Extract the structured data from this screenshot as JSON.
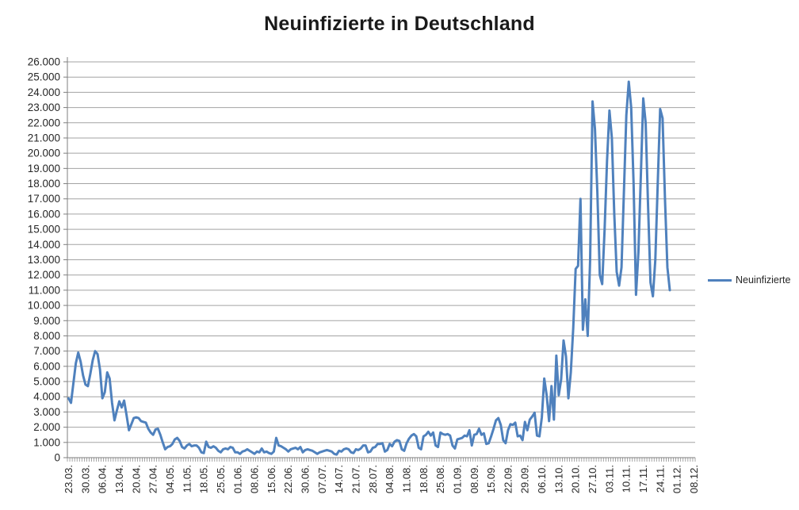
{
  "chart_data": {
    "type": "line",
    "title": "Neuinfizierte in Deutschland",
    "series_name": "Neuinfizierte",
    "legend_position": "right",
    "line_color": "#4F81BD",
    "gridline_color": "#A3A3A3",
    "axis_color": "#7F7F7F",
    "text_color": "#262626",
    "grid": "horizontal",
    "ylim": [
      0,
      26000
    ],
    "ytick_step": 1000,
    "ytick_labels": [
      "0",
      "1.000",
      "2.000",
      "3.000",
      "4.000",
      "5.000",
      "6.000",
      "7.000",
      "8.000",
      "9.000",
      "10.000",
      "11.000",
      "12.000",
      "13.000",
      "14.000",
      "15.000",
      "16.000",
      "17.000",
      "18.000",
      "19.000",
      "20.000",
      "21.000",
      "22.000",
      "23.000",
      "24.000",
      "25.000",
      "26.000"
    ],
    "x_labels": [
      "23.03.",
      "30.03.",
      "06.04.",
      "13.04.",
      "20.04.",
      "27.04.",
      "04.05.",
      "11.05.",
      "18.05.",
      "25.05.",
      "01.06.",
      "08.06.",
      "15.06.",
      "22.06.",
      "30.06.",
      "07.07.",
      "14.07.",
      "21.07.",
      "28.07.",
      "04.08.",
      "11.08.",
      "18.08.",
      "25.08.",
      "01.09.",
      "08.09.",
      "15.09.",
      "22.09.",
      "29.09.",
      "06.10.",
      "13.10.",
      "20.10.",
      "27.10.",
      "03.11.",
      "10.11.",
      "17.11.",
      "24.11.",
      "01.12.",
      "08.12."
    ],
    "label_spacing": 7,
    "n_categories": 260,
    "values": [
      3900,
      3600,
      4900,
      6200,
      6900,
      6300,
      5400,
      4800,
      4700,
      5500,
      6400,
      7000,
      6800,
      5800,
      3900,
      4300,
      5600,
      5200,
      3600,
      2450,
      3100,
      3700,
      3300,
      3750,
      2800,
      1800,
      2200,
      2600,
      2650,
      2600,
      2400,
      2350,
      2300,
      1900,
      1650,
      1500,
      1850,
      1900,
      1500,
      1000,
      550,
      700,
      750,
      900,
      1200,
      1300,
      1100,
      700,
      600,
      800,
      900,
      750,
      800,
      800,
      650,
      350,
      300,
      1050,
      700,
      650,
      750,
      650,
      450,
      350,
      550,
      600,
      550,
      700,
      650,
      350,
      350,
      250,
      400,
      450,
      550,
      450,
      350,
      250,
      400,
      350,
      600,
      350,
      400,
      300,
      250,
      400,
      1300,
      800,
      750,
      650,
      550,
      400,
      550,
      600,
      650,
      550,
      700,
      350,
      500,
      550,
      500,
      450,
      350,
      250,
      350,
      400,
      450,
      500,
      450,
      400,
      250,
      200,
      450,
      400,
      550,
      600,
      550,
      350,
      300,
      550,
      500,
      600,
      800,
      800,
      350,
      400,
      650,
      700,
      900,
      900,
      950,
      400,
      500,
      900,
      750,
      1050,
      1150,
      1100,
      550,
      450,
      950,
      1250,
      1450,
      1550,
      1400,
      650,
      550,
      1400,
      1500,
      1700,
      1450,
      1650,
      800,
      700,
      1650,
      1550,
      1500,
      1550,
      1450,
      800,
      600,
      1200,
      1250,
      1300,
      1450,
      1400,
      1800,
      800,
      1500,
      1550,
      1900,
      1500,
      1600,
      900,
      950,
      1400,
      1900,
      2450,
      2600,
      2150,
      1150,
      950,
      1800,
      2200,
      2150,
      2300,
      1400,
      1450,
      1150,
      2350,
      1800,
      2500,
      2700,
      2950,
      1450,
      1400,
      2650,
      5200,
      4100,
      2400,
      4700,
      2500,
      6700,
      4100,
      5150,
      7700,
      6650,
      3900,
      5600,
      8500,
      12400,
      12600,
      17000,
      8400,
      10400,
      8000,
      13000,
      23400,
      21600,
      17400,
      12000,
      11400,
      15000,
      19500,
      22800,
      21000,
      16000,
      12200,
      11300,
      12500,
      17500,
      22500,
      24700,
      23000,
      18000,
      10700,
      13500,
      18500,
      23600,
      22000,
      16500,
      11500,
      10600,
      13000,
      18000,
      22900,
      22300,
      17000,
      12500,
      11000
    ]
  }
}
